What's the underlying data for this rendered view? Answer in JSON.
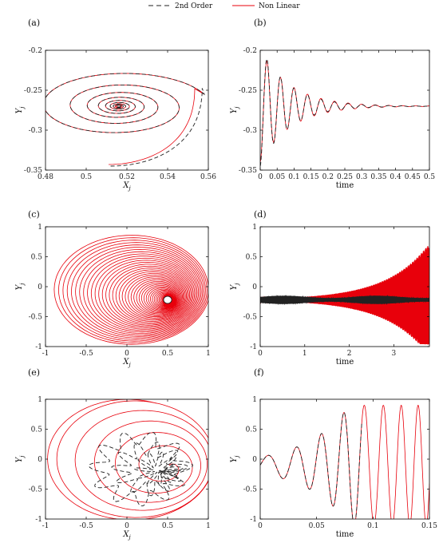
{
  "legend": {
    "entries": [
      {
        "label": "2nd Order",
        "color": "#222222",
        "style": "dashed"
      },
      {
        "label": "Non Linear",
        "color": "#e8000b",
        "style": "solid"
      }
    ]
  },
  "chart_data": [
    {
      "panel": "(a)",
      "type": "line",
      "xlabel": "X_j",
      "ylabel": "Y_j",
      "xlim": [
        0.48,
        0.56
      ],
      "ylim": [
        -0.35,
        -0.2
      ],
      "xticks": [
        "0.48",
        "0.5",
        "0.52",
        "0.54",
        "0.56"
      ],
      "yticks": [
        "-0.35",
        "-0.3",
        "-0.25",
        "-0.2"
      ],
      "series": [
        {
          "name": "2nd Order",
          "kind": "phase",
          "x0": 0.515,
          "y0": -0.345,
          "xc": 0.516,
          "yc": -0.27
        },
        {
          "name": "Non Linear",
          "kind": "phase",
          "x0": 0.512,
          "y0": -0.34,
          "xc": 0.516,
          "yc": -0.27
        }
      ]
    },
    {
      "panel": "(b)",
      "type": "line",
      "xlabel": "time",
      "ylabel": "Y_j",
      "xlim": [
        0,
        0.5
      ],
      "ylim": [
        -0.35,
        -0.2
      ],
      "xticks": [
        "0",
        "0.05",
        "0.1",
        "0.15",
        "0.2",
        "0.25",
        "0.3",
        "0.35",
        "0.4",
        "0.45",
        "0.5"
      ],
      "yticks": [
        "-0.35",
        "-0.3",
        "-0.25",
        "-0.2"
      ],
      "series": [
        {
          "name": "2nd Order",
          "kind": "damped",
          "steady": -0.27,
          "initial": -0.345,
          "freq_hz": 25,
          "decay": 12
        },
        {
          "name": "Non Linear",
          "kind": "damped",
          "steady": -0.27,
          "initial": -0.34,
          "freq_hz": 25,
          "decay": 11
        }
      ]
    },
    {
      "panel": "(c)",
      "type": "line",
      "xlabel": "X_j",
      "ylabel": "Y_j",
      "xlim": [
        -1,
        1
      ],
      "ylim": [
        -1,
        1
      ],
      "xticks": [
        "-1",
        "-0.5",
        "0",
        "0.5",
        "1"
      ],
      "yticks": [
        "-1",
        "-0.5",
        "0",
        "0.5",
        "1"
      ],
      "series": [
        {
          "name": "2nd Order",
          "kind": "limit-cycle",
          "xc": 0.5,
          "yc": -0.22,
          "r": 0.05
        },
        {
          "name": "Non Linear",
          "kind": "outward-spiral",
          "xc": 0.5,
          "yc": -0.22,
          "outer_x": [
            -0.95,
            0.97
          ],
          "outer_y": [
            -0.92,
            0.82
          ]
        }
      ]
    },
    {
      "panel": "(d)",
      "type": "line",
      "xlabel": "time",
      "ylabel": "Y_j",
      "xlim": [
        0,
        3.8
      ],
      "ylim": [
        -1,
        1
      ],
      "xticks": [
        "0",
        "1",
        "2",
        "3"
      ],
      "yticks": [
        "-1",
        "-0.5",
        "0",
        "0.5",
        "1"
      ],
      "series": [
        {
          "name": "2nd Order",
          "kind": "steady-oscillation",
          "center": -0.22,
          "amplitude": 0.05
        },
        {
          "name": "Non Linear",
          "kind": "growing-oscillation",
          "center": -0.22,
          "final_range": [
            -0.95,
            0.85
          ]
        }
      ]
    },
    {
      "panel": "(e)",
      "type": "line",
      "xlabel": "X_j",
      "ylabel": "Y_j",
      "xlim": [
        -1,
        1
      ],
      "ylim": [
        -1,
        1
      ],
      "xticks": [
        "-1",
        "-0.5",
        "0",
        "0.5",
        "1"
      ],
      "yticks": [
        "-1",
        "-0.5",
        "0",
        "0.5",
        "1"
      ],
      "series": [
        {
          "name": "2nd Order",
          "kind": "irregular-orbit"
        },
        {
          "name": "Non Linear",
          "kind": "spiral-to-circle",
          "radius": 1.0
        }
      ]
    },
    {
      "panel": "(f)",
      "type": "line",
      "xlabel": "time",
      "ylabel": "Y_j",
      "xlim": [
        0,
        0.15
      ],
      "ylim": [
        -1,
        1
      ],
      "xticks": [
        "0",
        "0.05",
        "0.1",
        "0.15"
      ],
      "yticks": [
        "-1",
        "-0.5",
        "0",
        "0.5",
        "1"
      ],
      "series": [
        {
          "name": "2nd Order",
          "kind": "growing-oscillation",
          "end_time": 0.09
        },
        {
          "name": "Non Linear",
          "kind": "growing-oscillation",
          "final_amplitude": 1.0
        }
      ]
    }
  ]
}
